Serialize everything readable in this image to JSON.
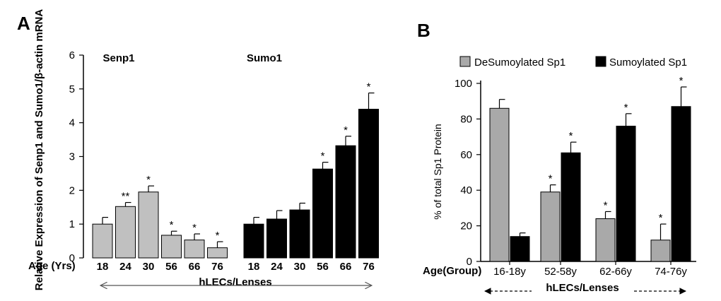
{
  "chart_data": [
    {
      "type": "bar",
      "panel": "A",
      "ylabel": "Relative Expression of Senp1 and Sumo1/β-actin mRNA",
      "xlabel": "hLECs/Lenses",
      "x_header": "Age (Yrs)",
      "ylim": [
        0,
        6
      ],
      "yticks": [
        "0",
        "1",
        "2",
        "3",
        "4",
        "5",
        "6"
      ],
      "groups": [
        {
          "name": "Senp1",
          "color": "#c0c0c0",
          "categories": [
            "18",
            "24",
            "30",
            "56",
            "66",
            "76"
          ],
          "values": [
            1.0,
            1.52,
            1.95,
            0.67,
            0.53,
            0.3
          ],
          "errors": [
            0.2,
            0.12,
            0.18,
            0.12,
            0.18,
            0.18
          ],
          "annotations": [
            "",
            "**",
            "*",
            "*",
            "*",
            "*"
          ]
        },
        {
          "name": "Sumo1",
          "color": "#000000",
          "categories": [
            "18",
            "24",
            "30",
            "56",
            "66",
            "76"
          ],
          "values": [
            1.0,
            1.15,
            1.42,
            2.63,
            3.32,
            4.4
          ],
          "errors": [
            0.2,
            0.25,
            0.2,
            0.2,
            0.28,
            0.48
          ],
          "annotations": [
            "",
            "",
            "",
            "*",
            "*",
            "*"
          ]
        }
      ]
    },
    {
      "type": "bar",
      "panel": "B",
      "ylabel": "% of total Sp1 Protein",
      "xlabel": "hLECs/Lenses",
      "x_header": "Age(Group)",
      "ylim": [
        0,
        100
      ],
      "yticks": [
        "0",
        "20",
        "40",
        "60",
        "80",
        "100"
      ],
      "categories": [
        "16-18y",
        "52-58y",
        "62-66y",
        "74-76y"
      ],
      "series": [
        {
          "name": "DeSumoylated Sp1",
          "color": "#a9a9a9",
          "values": [
            86,
            39,
            24,
            12
          ],
          "errors": [
            5,
            4,
            4,
            9
          ],
          "annotations": [
            "",
            "*",
            "*",
            "*"
          ]
        },
        {
          "name": "Sumoylated Sp1",
          "color": "#000000",
          "values": [
            14,
            61,
            76,
            87
          ],
          "errors": [
            2,
            6,
            7,
            11
          ],
          "annotations": [
            "",
            "*",
            "*",
            "*"
          ]
        }
      ]
    }
  ]
}
